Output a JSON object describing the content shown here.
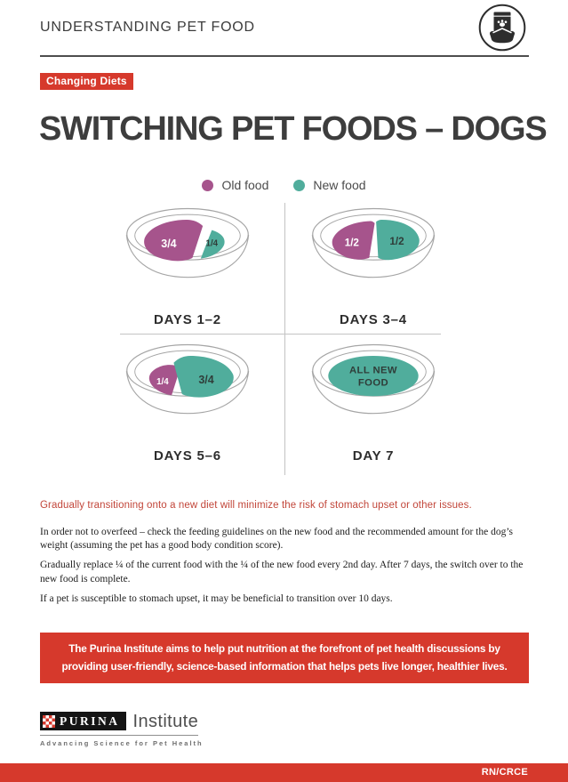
{
  "header": {
    "title": "UNDERSTANDING PET FOOD",
    "icon": "pet-food-bag-and-bowl"
  },
  "badge": "Changing Diets",
  "title": "SWITCHING PET FOODS – DOGS",
  "colors": {
    "old_food": "#a6548c",
    "new_food": "#50ad9c",
    "brand_red": "#d6392c",
    "statement_red": "#c2463a",
    "dark_label": "#2f3d39",
    "bowl_outline": "#a5a5a5"
  },
  "legend": [
    {
      "label": "Old food",
      "role": "old"
    },
    {
      "label": "New food",
      "role": "new"
    }
  ],
  "bowls": [
    {
      "caption": "DAYS 1–2",
      "variant": "old3new1",
      "slices": [
        {
          "label": "3/4",
          "role": "old"
        },
        {
          "label": "1/4",
          "role": "new"
        }
      ]
    },
    {
      "caption": "DAYS 3–4",
      "variant": "old2new2",
      "slices": [
        {
          "label": "1/2",
          "role": "old"
        },
        {
          "label": "1/2",
          "role": "new"
        }
      ]
    },
    {
      "caption": "DAYS 5–6",
      "variant": "old1new3",
      "slices": [
        {
          "label": "1/4",
          "role": "old"
        },
        {
          "label": "3/4",
          "role": "new"
        }
      ]
    },
    {
      "caption": "DAY 7",
      "variant": "allnew",
      "slices": [
        {
          "label": "ALL NEW FOOD",
          "role": "new"
        }
      ]
    }
  ],
  "statement": "Gradually transitioning onto a new diet will minimize the risk of stomach upset or other issues.",
  "paragraphs": [
    "In order not to overfeed – check the feeding guidelines on the new food and the recommended amount for the dog’s weight (assuming the pet has a good body condition score).",
    "Gradually replace ¼ of the current food with the ¼ of the new food every 2nd day. After 7 days, the switch over to the new food is complete.",
    "If a pet is susceptible to stomach upset, it may be beneficial to transition over 10 days."
  ],
  "callout": "The Purina Institute aims to help put nutrition at the forefront of pet health discussions by providing user-friendly, science-based information that helps pets live longer, healthier lives.",
  "footer": {
    "logo_primary": "PURINA",
    "logo_secondary": "Institute",
    "tagline": "Advancing Science for Pet Health",
    "code": "RN/CRCE"
  }
}
